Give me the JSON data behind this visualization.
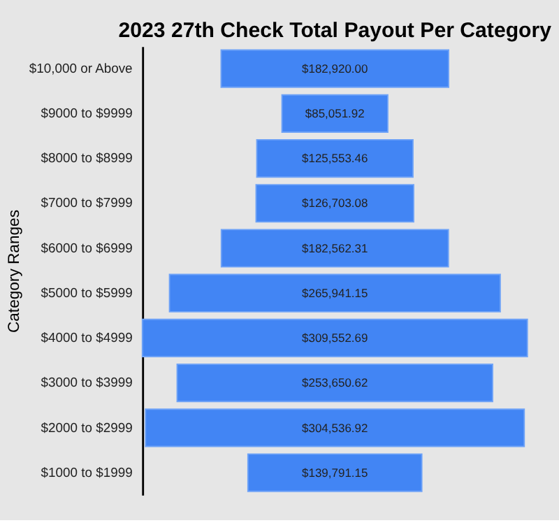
{
  "chart_data": {
    "type": "other",
    "title": "2023 27th Check Total Payout Per Category",
    "ylabel": "Category Ranges",
    "categories": [
      "$10,000 or Above",
      "$9000 to $9999",
      "$8000 to $8999",
      "$7000 to $7999",
      "$6000 to $6999",
      "$5000 to $5999",
      "$4000 to $4999",
      "$3000 to $3999",
      "$2000 to $2999",
      "$1000 to $1999"
    ],
    "values": [
      182920.0,
      85051.92,
      125553.46,
      126703.08,
      182562.31,
      265941.15,
      309552.69,
      253650.62,
      304536.92,
      139791.15
    ],
    "value_labels": [
      "$182,920.00",
      "$85,051.92",
      "$125,553.46",
      "$126,703.08",
      "$182,562.31",
      "$265,941.15",
      "$309,552.69",
      "$253,650.62",
      "$304,536.92",
      "$139,791.15"
    ],
    "color": "#4285f4"
  }
}
